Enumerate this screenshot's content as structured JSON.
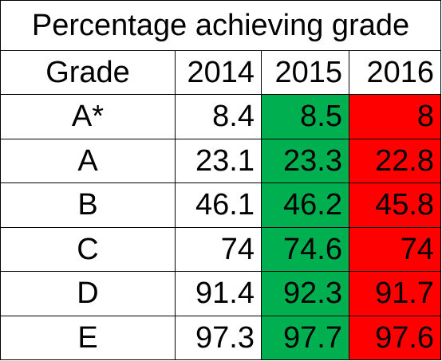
{
  "title": "Percentage achieving grade",
  "columns": [
    "Grade",
    "2014",
    "2015",
    "2016"
  ],
  "colors": {
    "improved": "#00b050",
    "declined": "#ff0000"
  },
  "rows": [
    {
      "grade": "A*",
      "y2014": "8.4",
      "y2015": "8.5",
      "y2016": "8"
    },
    {
      "grade": "A",
      "y2014": "23.1",
      "y2015": "23.3",
      "y2016": "22.8"
    },
    {
      "grade": "B",
      "y2014": "46.1",
      "y2015": "46.2",
      "y2016": "45.8"
    },
    {
      "grade": "C",
      "y2014": "74",
      "y2015": "74.6",
      "y2016": "74"
    },
    {
      "grade": "D",
      "y2014": "91.4",
      "y2015": "92.3",
      "y2016": "91.7"
    },
    {
      "grade": "E",
      "y2014": "97.3",
      "y2015": "97.7",
      "y2016": "97.6"
    }
  ]
}
